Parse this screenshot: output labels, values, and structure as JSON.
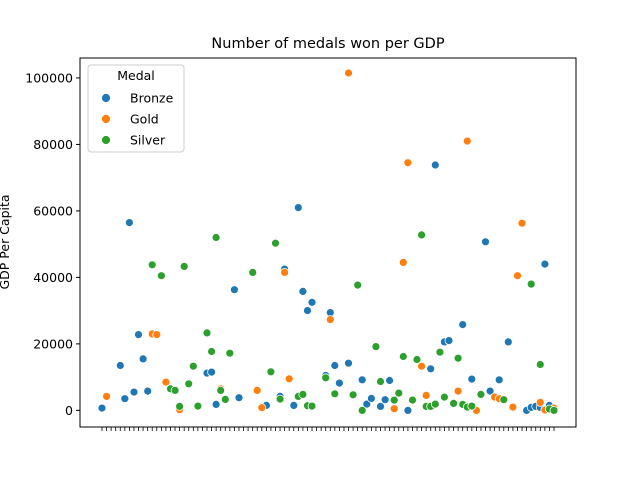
{
  "chart_data": {
    "type": "scatter",
    "title": "Number of medals won per GDP",
    "xlabel": "",
    "ylabel": "GDP Per Capita",
    "ylim": [
      -5000,
      106000
    ],
    "yticks": [
      0,
      20000,
      40000,
      60000,
      80000,
      100000
    ],
    "x_tick_count": 100,
    "legend": {
      "title": "Medal",
      "placement": "top-left"
    },
    "series": [
      {
        "name": "Bronze",
        "color": "#1f77b4",
        "x": [
          0,
          4,
          5,
          6,
          7,
          8,
          9,
          10,
          23,
          24,
          25,
          29,
          30,
          36,
          39,
          40,
          42,
          43,
          44,
          45,
          46,
          49,
          50,
          51,
          52,
          54,
          55,
          57,
          58,
          59,
          61,
          62,
          63,
          67,
          72,
          73,
          75,
          76,
          79,
          81,
          84,
          85,
          87,
          89,
          93,
          94,
          95,
          96,
          97,
          98,
          99
        ],
        "y": [
          700,
          13500,
          3500,
          56500,
          5500,
          22800,
          15500,
          5800,
          11200,
          11500,
          1800,
          36300,
          3800,
          1500,
          4200,
          42500,
          1500,
          61000,
          35800,
          30000,
          32500,
          10500,
          29400,
          13500,
          8200,
          14200,
          4800,
          9200,
          1900,
          3600,
          1200,
          3200,
          9000,
          0,
          12500,
          73800,
          20600,
          21000,
          25800,
          9400,
          50700,
          5800,
          9200,
          20600,
          0,
          900,
          1200,
          900,
          44000,
          1500,
          0
        ]
      },
      {
        "name": "Gold",
        "color": "#ff7f0e",
        "x": [
          1,
          11,
          12,
          14,
          17,
          26,
          34,
          35,
          40,
          41,
          50,
          54,
          64,
          66,
          67,
          70,
          71,
          78,
          80,
          82,
          86,
          87,
          90,
          91,
          92,
          96,
          97,
          99
        ],
        "y": [
          4200,
          23000,
          22800,
          8500,
          200,
          6500,
          6000,
          800,
          41500,
          9500,
          27300,
          101500,
          500,
          44500,
          74500,
          13300,
          4500,
          5800,
          81000,
          0,
          4000,
          3500,
          1000,
          40500,
          56300,
          2400,
          100,
          700
        ]
      },
      {
        "name": "Silver",
        "color": "#2ca02c",
        "x": [
          11,
          13,
          15,
          16,
          17,
          18,
          19,
          20,
          21,
          23,
          24,
          25,
          26,
          27,
          28,
          33,
          37,
          38,
          39,
          43,
          44,
          45,
          46,
          49,
          51,
          55,
          56,
          57,
          60,
          61,
          64,
          65,
          66,
          68,
          69,
          70,
          71,
          72,
          73,
          74,
          75,
          77,
          78,
          79,
          80,
          81,
          83,
          88,
          94,
          96,
          98,
          99
        ],
        "y": [
          43800,
          40500,
          6500,
          6000,
          1200,
          43300,
          8000,
          13300,
          1300,
          23300,
          17700,
          52000,
          6000,
          3300,
          17200,
          41500,
          11600,
          50300,
          3400,
          4200,
          4800,
          1400,
          1300,
          9800,
          5000,
          4700,
          37700,
          0,
          19200,
          8700,
          3100,
          5200,
          16200,
          3100,
          15300,
          52800,
          1200,
          1200,
          1900,
          17500,
          4000,
          2100,
          15700,
          1800,
          1000,
          1300,
          4800,
          3200,
          38000,
          13800,
          400,
          0
        ]
      }
    ]
  }
}
